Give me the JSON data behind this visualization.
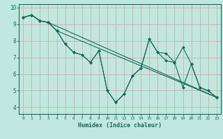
{
  "title": "",
  "xlabel": "Humidex (Indice chaleur)",
  "ylabel": "",
  "bg_color": "#c0e8e0",
  "grid_color": "#d4a8a8",
  "line_color": "#1a6858",
  "marker_color": "#1a6858",
  "xlim": [
    -0.5,
    23.5
  ],
  "ylim": [
    3.6,
    10.2
  ],
  "xticks": [
    0,
    1,
    2,
    3,
    4,
    5,
    6,
    7,
    8,
    9,
    10,
    11,
    12,
    13,
    14,
    15,
    16,
    17,
    18,
    19,
    20,
    21,
    22,
    23
  ],
  "yticks": [
    4,
    5,
    6,
    7,
    8,
    9,
    10
  ],
  "series": [
    {
      "x": [
        0,
        1,
        2,
        3,
        23
      ],
      "y": [
        9.4,
        9.55,
        9.2,
        9.1,
        4.6
      ]
    },
    {
      "x": [
        0,
        1,
        2,
        3,
        4,
        23
      ],
      "y": [
        9.4,
        9.55,
        9.2,
        9.1,
        8.6,
        4.6
      ]
    },
    {
      "x": [
        0,
        1,
        2,
        3,
        4,
        5,
        6,
        7,
        8,
        9,
        10,
        11,
        12,
        13,
        14,
        15,
        16,
        17,
        18,
        19,
        20,
        21,
        22,
        23
      ],
      "y": [
        9.4,
        9.55,
        9.2,
        9.1,
        8.6,
        7.8,
        7.3,
        7.15,
        6.7,
        7.4,
        5.0,
        4.3,
        4.8,
        5.9,
        6.35,
        8.1,
        7.3,
        7.25,
        6.7,
        7.6,
        6.6,
        5.2,
        5.0,
        4.6
      ]
    },
    {
      "x": [
        0,
        1,
        2,
        3,
        4,
        5,
        6,
        7,
        8,
        9,
        10,
        11,
        12,
        13,
        14,
        15,
        16,
        17,
        18,
        19,
        20,
        21,
        22,
        23
      ],
      "y": [
        9.4,
        9.55,
        9.2,
        9.1,
        8.6,
        7.8,
        7.3,
        7.15,
        6.7,
        7.4,
        5.0,
        4.3,
        4.8,
        5.9,
        6.35,
        8.1,
        7.3,
        6.8,
        6.7,
        5.2,
        6.6,
        5.2,
        5.0,
        4.6
      ]
    }
  ]
}
